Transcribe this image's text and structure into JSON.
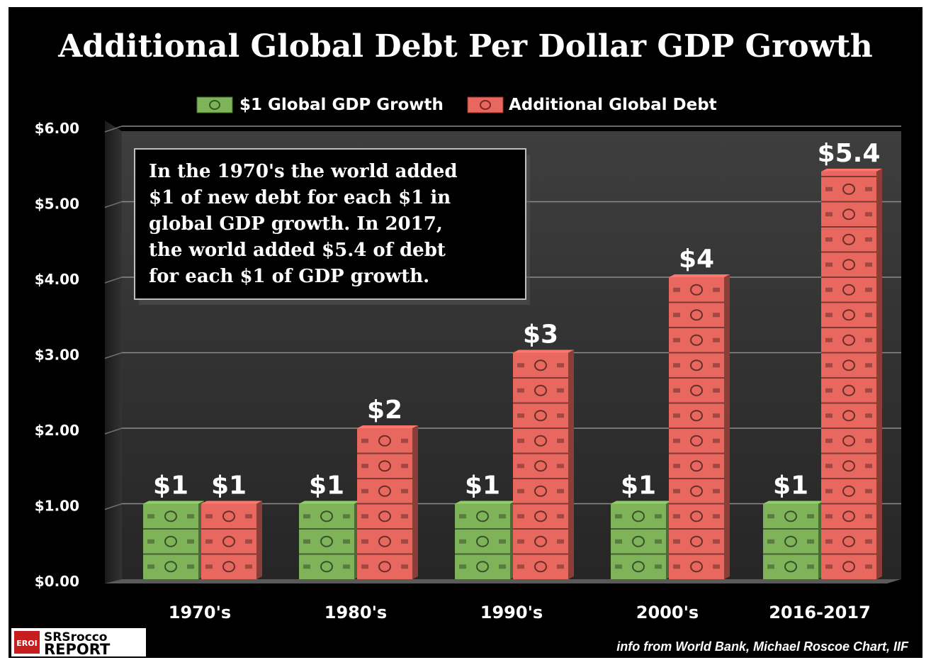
{
  "chart_data": {
    "type": "bar",
    "title": "Additional Global Debt Per Dollar GDP Growth",
    "categories": [
      "1970's",
      "1980's",
      "1990's",
      "2000's",
      "2016-2017"
    ],
    "series": [
      {
        "name": "$1 Global GDP Growth",
        "values": [
          1,
          1,
          1,
          1,
          1
        ],
        "labels": [
          "$1",
          "$1",
          "$1",
          "$1",
          "$1"
        ],
        "color": "#7fb35a"
      },
      {
        "name": "Additional Global Debt",
        "values": [
          1,
          2,
          3,
          4,
          5.4
        ],
        "labels": [
          "$1",
          "$2",
          "$3",
          "$4",
          "$5.4"
        ],
        "color": "#e8675e"
      }
    ],
    "yticks": [
      "$0.00",
      "$1.00",
      "$2.00",
      "$3.00",
      "$4.00",
      "$5.00",
      "$6.00"
    ],
    "ylim": [
      0,
      6
    ],
    "legend_position": "top",
    "grid": true
  },
  "annotation_lines": [
    "In the 1970's the world added",
    "$1 of new debt for each $1 in",
    "global GDP growth.  In 2017,",
    "the world added $5.4 of debt",
    "for each $1 of GDP growth."
  ],
  "source": "info from World Bank, Michael Roscoe Chart, IIF",
  "logo": {
    "badge": "EROI",
    "line1": "SRSrocco",
    "line2": "REPORT"
  }
}
